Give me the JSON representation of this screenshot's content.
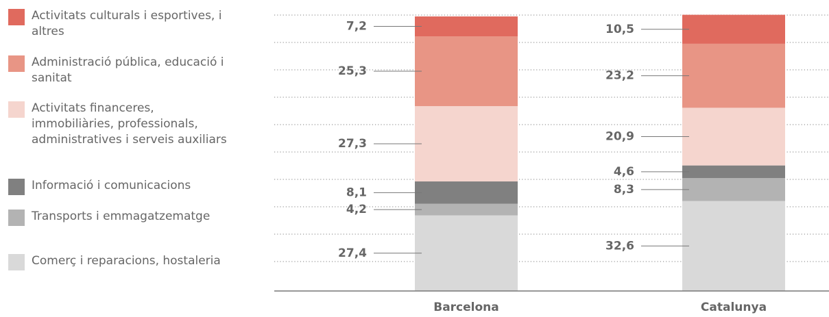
{
  "chart_data": {
    "type": "stacked_bar",
    "categories": [
      "Barcelona",
      "Catalunya"
    ],
    "ylim": [
      0,
      100
    ],
    "grid": true,
    "series": [
      {
        "name": "Comerç i reparacions, hostaleria",
        "color": "#d9d9d9",
        "values": [
          27.4,
          32.6
        ],
        "value_labels": [
          "27,4",
          "32,6"
        ]
      },
      {
        "name": "Transports i emmagatzematge",
        "color": "#b3b3b3",
        "values": [
          4.2,
          8.3
        ],
        "value_labels": [
          "4,2",
          "8,3"
        ]
      },
      {
        "name": "Informació i comunicacions",
        "color": "#808080",
        "values": [
          8.1,
          4.6
        ],
        "value_labels": [
          "8,1",
          "4,6"
        ]
      },
      {
        "name": "Activitats financeres, immobiliàries, professionals, administratives i serveis auxiliars",
        "color": "#f5d5ce",
        "values": [
          27.3,
          20.9
        ],
        "value_labels": [
          "27,3",
          "20,9"
        ]
      },
      {
        "name": "Administració pública, educació i sanitat",
        "color": "#e89585",
        "values": [
          25.3,
          23.2
        ],
        "value_labels": [
          "25,3",
          "23,2"
        ]
      },
      {
        "name": "Activitats culturals i esportives, i altres",
        "color": "#e06a5e",
        "values": [
          7.2,
          10.5
        ],
        "value_labels": [
          "7,2",
          "10,5"
        ]
      }
    ]
  }
}
